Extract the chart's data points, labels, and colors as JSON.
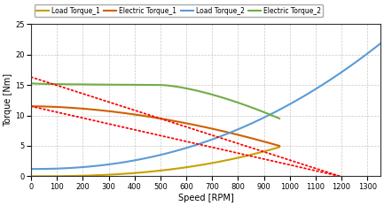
{
  "xlabel": "Speed [RPM]",
  "ylabel": "Torque [Nm]",
  "xlim": [
    0,
    1350
  ],
  "ylim": [
    0,
    25
  ],
  "xticks": [
    0,
    100,
    200,
    300,
    400,
    500,
    600,
    700,
    800,
    900,
    1000,
    1100,
    1200,
    1300
  ],
  "yticks": [
    0,
    5,
    10,
    15,
    20,
    25
  ],
  "legend_labels": [
    "Load Torque_1",
    "Electric Torque_1",
    "Load Torque_2",
    "Electric Torque_2"
  ],
  "background_color": "#ffffff",
  "grid_color": "#c8c8c8",
  "load_torque_1": {
    "color": "#c8a000",
    "speed_end": 960,
    "T_start": 0.0,
    "T_end": 4.8,
    "exponent": 2.5
  },
  "electric_torque_1": {
    "color": "#d06000",
    "speed_end": 960,
    "T_start": 11.5,
    "T_end": 5.0,
    "exponent": 1.8
  },
  "load_torque_2": {
    "color": "#5b9bd5",
    "speed_start": 0,
    "speed_end": 1350,
    "T_start": 1.2,
    "T_end": 21.8,
    "exponent": 2.2
  },
  "electric_torque_2": {
    "color": "#70ad47",
    "speed_end": 960,
    "T_start": 15.3,
    "T_flat_end": 500,
    "T_flat": 15.0,
    "T_end": 9.5,
    "drop_exponent": 1.5
  },
  "red_dotted_1": {
    "color": "#ff0000",
    "x_start": 0,
    "x_end": 1195,
    "T_start": 16.3,
    "T_end": 0.0,
    "linewidth": 1.3
  },
  "red_dotted_2": {
    "color": "#ff0000",
    "x_start": 0,
    "x_end": 1195,
    "T_start": 11.5,
    "T_end": 0.0,
    "linewidth": 1.3
  }
}
